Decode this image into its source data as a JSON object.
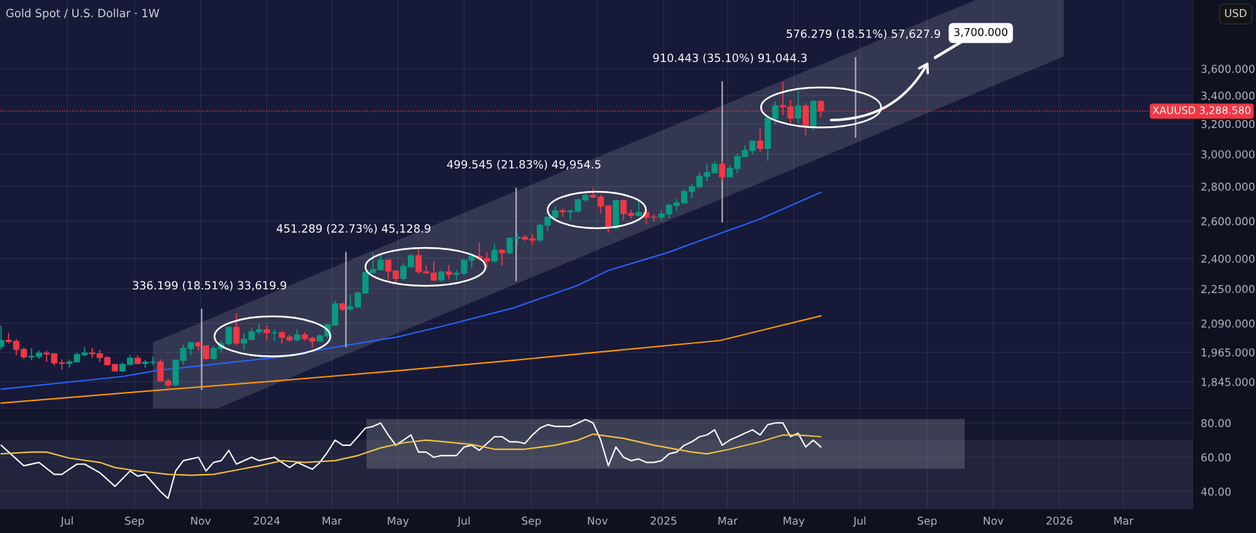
{
  "chart_data": [
    {
      "type": "candlestick",
      "title": "Gold Spot / U.S. Dollar · 1W",
      "x": [
        "2023-05-01",
        "2023-05-08",
        "2023-05-15",
        "2023-05-22",
        "2023-05-29",
        "2023-06-05",
        "2023-06-12",
        "2023-06-19",
        "2023-06-26",
        "2023-07-03",
        "2023-07-10",
        "2023-07-17",
        "2023-07-24",
        "2023-07-31",
        "2023-08-07",
        "2023-08-14",
        "2023-08-21",
        "2023-08-28",
        "2023-09-04",
        "2023-09-11",
        "2023-09-18",
        "2023-09-25",
        "2023-10-02",
        "2023-10-09",
        "2023-10-16",
        "2023-10-23",
        "2023-10-30",
        "2023-11-06",
        "2023-11-13",
        "2023-11-20",
        "2023-11-27",
        "2023-12-04",
        "2023-12-11",
        "2023-12-18",
        "2023-12-25",
        "2024-01-01",
        "2024-01-08",
        "2024-01-15",
        "2024-01-22",
        "2024-01-29",
        "2024-02-05",
        "2024-02-12",
        "2024-02-19",
        "2024-02-26",
        "2024-03-04",
        "2024-03-11",
        "2024-03-18",
        "2024-03-25",
        "2024-04-01",
        "2024-04-08",
        "2024-04-15",
        "2024-04-22",
        "2024-04-29",
        "2024-05-06",
        "2024-05-13",
        "2024-05-20",
        "2024-05-27",
        "2024-06-03",
        "2024-06-10",
        "2024-06-17",
        "2024-06-24",
        "2024-07-01",
        "2024-07-08",
        "2024-07-15",
        "2024-07-22",
        "2024-07-29",
        "2024-08-05",
        "2024-08-12",
        "2024-08-19",
        "2024-08-26",
        "2024-09-02",
        "2024-09-09",
        "2024-09-16",
        "2024-09-23",
        "2024-09-30",
        "2024-10-07",
        "2024-10-14",
        "2024-10-21",
        "2024-10-28",
        "2024-11-04",
        "2024-11-11",
        "2024-11-18",
        "2024-11-25",
        "2024-12-02",
        "2024-12-09",
        "2024-12-16",
        "2024-12-23",
        "2024-12-30",
        "2025-01-06",
        "2025-01-13",
        "2025-01-20",
        "2025-01-27",
        "2025-02-03",
        "2025-02-10",
        "2025-02-17",
        "2025-02-24",
        "2025-03-03",
        "2025-03-10",
        "2025-03-17",
        "2025-03-24",
        "2025-03-31",
        "2025-04-07",
        "2025-04-14",
        "2025-04-21",
        "2025-04-28",
        "2025-05-05",
        "2025-05-12",
        "2025-05-19",
        "2025-05-26"
      ],
      "ohlc": [
        [
          1990,
          2081,
          1976,
          2016
        ],
        [
          2016,
          2048,
          2002,
          2011
        ],
        [
          2011,
          2022,
          1952,
          1977
        ],
        [
          1977,
          1985,
          1937,
          1946
        ],
        [
          1946,
          1983,
          1932,
          1948
        ],
        [
          1948,
          1973,
          1938,
          1961
        ],
        [
          1961,
          1971,
          1925,
          1958
        ],
        [
          1958,
          1960,
          1910,
          1921
        ],
        [
          1921,
          1935,
          1893,
          1919
        ],
        [
          1919,
          1935,
          1902,
          1925
        ],
        [
          1925,
          1963,
          1923,
          1955
        ],
        [
          1955,
          1987,
          1948,
          1962
        ],
        [
          1962,
          1983,
          1942,
          1959
        ],
        [
          1959,
          1975,
          1925,
          1943
        ],
        [
          1943,
          1948,
          1912,
          1914
        ],
        [
          1914,
          1916,
          1885,
          1889
        ],
        [
          1889,
          1923,
          1884,
          1915
        ],
        [
          1915,
          1953,
          1912,
          1940
        ],
        [
          1940,
          1953,
          1915,
          1919
        ],
        [
          1919,
          1933,
          1901,
          1924
        ],
        [
          1924,
          1947,
          1913,
          1925
        ],
        [
          1925,
          1936,
          1846,
          1848
        ],
        [
          1848,
          1857,
          1810,
          1833
        ],
        [
          1833,
          1933,
          1828,
          1932
        ],
        [
          1932,
          1997,
          1915,
          1981
        ],
        [
          1981,
          2009,
          1953,
          2006
        ],
        [
          2006,
          2009,
          1972,
          1992
        ],
        [
          1992,
          1993,
          1932,
          1940
        ],
        [
          1940,
          1994,
          1932,
          1981
        ],
        [
          1981,
          2017,
          1965,
          2002
        ],
        [
          2002,
          2075,
          1992,
          2072
        ],
        [
          2072,
          2135,
          1995,
          2004
        ],
        [
          2004,
          2047,
          1973,
          2020
        ],
        [
          2020,
          2071,
          2016,
          2053
        ],
        [
          2053,
          2088,
          2040,
          2062
        ],
        [
          2062,
          2079,
          2017,
          2049
        ],
        [
          2049,
          2062,
          2013,
          2049
        ],
        [
          2049,
          2056,
          2002,
          2029
        ],
        [
          2029,
          2041,
          2010,
          2018
        ],
        [
          2018,
          2065,
          2011,
          2039
        ],
        [
          2039,
          2052,
          2014,
          2024
        ],
        [
          2024,
          2031,
          1984,
          2013
        ],
        [
          2013,
          2041,
          2009,
          2035
        ],
        [
          2035,
          2088,
          2024,
          2083
        ],
        [
          2083,
          2195,
          2079,
          2179
        ],
        [
          2179,
          2185,
          2146,
          2155
        ],
        [
          2155,
          2222,
          2146,
          2165
        ],
        [
          2165,
          2236,
          2160,
          2230
        ],
        [
          2230,
          2330,
          2228,
          2330
        ],
        [
          2330,
          2431,
          2327,
          2344
        ],
        [
          2344,
          2418,
          2342,
          2392
        ],
        [
          2392,
          2394,
          2292,
          2337
        ],
        [
          2337,
          2340,
          2277,
          2301
        ],
        [
          2301,
          2378,
          2290,
          2360
        ],
        [
          2360,
          2422,
          2353,
          2415
        ],
        [
          2415,
          2450,
          2325,
          2334
        ],
        [
          2334,
          2364,
          2323,
          2327
        ],
        [
          2327,
          2388,
          2287,
          2293
        ],
        [
          2293,
          2338,
          2286,
          2333
        ],
        [
          2333,
          2368,
          2295,
          2321
        ],
        [
          2321,
          2340,
          2293,
          2326
        ],
        [
          2326,
          2392,
          2319,
          2392
        ],
        [
          2392,
          2424,
          2353,
          2411
        ],
        [
          2411,
          2483,
          2392,
          2400
        ],
        [
          2400,
          2432,
          2353,
          2387
        ],
        [
          2387,
          2477,
          2382,
          2443
        ],
        [
          2443,
          2449,
          2364,
          2431
        ],
        [
          2431,
          2509,
          2422,
          2507
        ],
        [
          2507,
          2531,
          2470,
          2512
        ],
        [
          2512,
          2525,
          2492,
          2503
        ],
        [
          2503,
          2529,
          2472,
          2497
        ],
        [
          2497,
          2586,
          2485,
          2577
        ],
        [
          2577,
          2625,
          2546,
          2622
        ],
        [
          2622,
          2685,
          2615,
          2658
        ],
        [
          2658,
          2672,
          2624,
          2653
        ],
        [
          2653,
          2665,
          2603,
          2657
        ],
        [
          2657,
          2725,
          2648,
          2721
        ],
        [
          2721,
          2758,
          2708,
          2747
        ],
        [
          2747,
          2790,
          2730,
          2737
        ],
        [
          2737,
          2750,
          2643,
          2685
        ],
        [
          2685,
          2691,
          2536,
          2563
        ],
        [
          2563,
          2721,
          2556,
          2716
        ],
        [
          2716,
          2721,
          2605,
          2643
        ],
        [
          2643,
          2663,
          2614,
          2633
        ],
        [
          2633,
          2726,
          2626,
          2648
        ],
        [
          2648,
          2664,
          2583,
          2622
        ],
        [
          2622,
          2639,
          2596,
          2621
        ],
        [
          2621,
          2665,
          2603,
          2640
        ],
        [
          2640,
          2697,
          2615,
          2690
        ],
        [
          2690,
          2726,
          2657,
          2703
        ],
        [
          2703,
          2786,
          2700,
          2770
        ],
        [
          2770,
          2817,
          2730,
          2798
        ],
        [
          2798,
          2886,
          2790,
          2861
        ],
        [
          2861,
          2942,
          2832,
          2883
        ],
        [
          2883,
          2955,
          2880,
          2936
        ],
        [
          2936,
          2956,
          2832,
          2858
        ],
        [
          2858,
          2930,
          2857,
          2910
        ],
        [
          2910,
          3005,
          2880,
          2984
        ],
        [
          2984,
          3057,
          2982,
          3023
        ],
        [
          3023,
          3087,
          3000,
          3084
        ],
        [
          3084,
          3168,
          3015,
          3037
        ],
        [
          3037,
          3245,
          2957,
          3237
        ],
        [
          3237,
          3358,
          3194,
          3327
        ],
        [
          3327,
          3500,
          3260,
          3319
        ],
        [
          3319,
          3368,
          3202,
          3241
        ],
        [
          3241,
          3435,
          3202,
          3325
        ],
        [
          3325,
          3346,
          3121,
          3187
        ],
        [
          3187,
          3366,
          3153,
          3357
        ],
        [
          3357,
          3365,
          3245,
          3289
        ]
      ],
      "series": [
        {
          "type": "line",
          "color": "#2962ff",
          "x": [
            "2023-05-01",
            "2023-08-21",
            "2023-09-23",
            "2024-01-11",
            "2024-03-02",
            "2024-04-30",
            "2024-06-02",
            "2024-06-23",
            "2024-08-16",
            "2024-10-13",
            "2024-11-11",
            "2025-01-04",
            "2025-03-31",
            "2025-05-26"
          ],
          "values": [
            1816,
            1866,
            1891,
            1944,
            1985,
            2030,
            2067,
            2092,
            2161,
            2265,
            2340,
            2430,
            2612,
            2765
          ]
        },
        {
          "type": "line",
          "color": "#ff9800",
          "x": [
            "2023-05-01",
            "2023-09-20",
            "2024-01-11",
            "2024-04-30",
            "2024-08-16",
            "2024-12-02",
            "2025-02-22",
            "2025-05-26"
          ],
          "values": [
            1763,
            1811,
            1849,
            1889,
            1932,
            1979,
            2015,
            2124
          ]
        },
        {
          "type": "line",
          "color": "#ffffff",
          "x": [
            "2023-09-18",
            "2023-11-16",
            "2024-02-15",
            "2024-05-22",
            "2024-08-27",
            "2024-12-02",
            "2025-03-10",
            "2025-06-15",
            "2025-08-18",
            "2025-10-16",
            "2026-01-05"
          ],
          "values": [
            null,
            null,
            null,
            null,
            null,
            null,
            null,
            null,
            null,
            null,
            null
          ],
          "lower": [
            1742,
            1742,
            1904,
            2089,
            2294,
            2519,
            2765,
            3036,
            3231,
            3419,
            3695
          ],
          "upper": [
            2007,
            2124,
            2320,
            2548,
            2797,
            3072,
            3372,
            3702,
            3941,
            4169,
            4169
          ]
        },
        {
          "type": "line",
          "color": "#b2b5be",
          "x": [
            "2023-11-02",
            "2023-11-02"
          ],
          "values": [
            1815,
            2154
          ]
        },
        {
          "type": "line",
          "color": "#b2b5be",
          "x": [
            "2024-03-14",
            "2024-03-14"
          ],
          "values": [
            1988,
            2432
          ]
        },
        {
          "type": "line",
          "color": "#b2b5be",
          "x": [
            "2024-08-18",
            "2024-08-18"
          ],
          "values": [
            2290,
            2789
          ]
        },
        {
          "type": "line",
          "color": "#b2b5be",
          "x": [
            "2025-02-24",
            "2025-02-24"
          ],
          "values": [
            2596,
            3501
          ]
        },
        {
          "type": "line",
          "color": "#b2b5be",
          "x": [
            "2025-06-27",
            "2025-06-27"
          ],
          "values": [
            3111,
            3686
          ]
        }
      ],
      "xlim": [
        "2023-04-30",
        "2026-05-04"
      ],
      "xticks": [
        {
          "value": "2023-07-01",
          "label": null
        },
        {
          "value": "2023-09-01",
          "label": null
        },
        {
          "value": "2023-11-01",
          "label": null
        },
        {
          "value": "2024-01-01",
          "label": null
        },
        {
          "value": "2024-03-01",
          "label": null
        },
        {
          "value": "2024-05-01",
          "label": null
        },
        {
          "value": "2024-07-01",
          "label": null
        },
        {
          "value": "2024-09-01",
          "label": null
        },
        {
          "value": "2024-11-01",
          "label": null
        },
        {
          "value": "2025-01-01",
          "label": null
        },
        {
          "value": "2025-03-01",
          "label": null
        },
        {
          "value": "2025-05-01",
          "label": null
        },
        {
          "value": "2025-07-01",
          "label": null
        },
        {
          "value": "2025-09-01",
          "label": null
        },
        {
          "value": "2025-11-01",
          "label": null
        },
        {
          "value": "2026-01-01",
          "label": null
        },
        {
          "value": "2026-03-01",
          "label": null
        }
      ],
      "log": true,
      "ylim": [
        1742,
        4169
      ],
      "yticks": [
        {
          "value": 1845,
          "label": "1,845.000"
        },
        {
          "value": 1965,
          "label": "1,965.000"
        },
        {
          "value": 2090,
          "label": "2,090.000"
        },
        {
          "value": 2250,
          "label": "2,250.000"
        },
        {
          "value": 2400,
          "label": "2,400.000"
        },
        {
          "value": 2600,
          "label": "2,600.000"
        },
        {
          "value": 2800,
          "label": "2,800.000"
        },
        {
          "value": 3000,
          "label": "3,000.000"
        },
        {
          "value": 3200,
          "label": "3,200.000"
        },
        {
          "value": 3400,
          "label": "3,400.000"
        },
        {
          "value": 3600,
          "label": "3,600.000"
        }
      ],
      "grid": true,
      "tick_labels": "y",
      "ref_lines": [
        {
          "axis": "y",
          "value": 3288.58,
          "label": "XAUUSD 3,288.580",
          "color": "#f23645",
          "line_style": "dotted"
        }
      ],
      "annotations": [
        "USD",
        {
          "text": "336.199 (18.51%) 33,619.9",
          "x": "2023-11-02",
          "y": 2154
        },
        {
          "text": "451.289 (22.73%) 45,128.9",
          "x": "2024-03-14",
          "y": 2432
        },
        {
          "text": "499.545 (21.83%) 49,954.5",
          "x": "2024-08-18",
          "y": 2789
        },
        {
          "text": "910.443 (35.10%) 91,044.3",
          "x": "2025-02-24",
          "y": 3501
        },
        {
          "text": "576.279 (18.51%) 57,627.9",
          "x": "2025-06-27",
          "y": 3686
        },
        "3,700.000"
      ]
    },
    {
      "type": "line",
      "series": [
        {
          "color": "#ffffff",
          "x": [
            "2023-05-01",
            "2023-05-22",
            "2023-06-05",
            "2023-06-19",
            "2023-06-26",
            "2023-07-10",
            "2023-07-17",
            "2023-07-31",
            "2023-08-14",
            "2023-08-28",
            "2023-09-04",
            "2023-09-11",
            "2023-09-25",
            "2023-10-02",
            "2023-10-09",
            "2023-10-16",
            "2023-10-30",
            "2023-11-06",
            "2023-11-13",
            "2023-11-20",
            "2023-11-27",
            "2023-12-04",
            "2023-12-11",
            "2023-12-18",
            "2023-12-25",
            "2024-01-08",
            "2024-01-15",
            "2024-01-22",
            "2024-01-29",
            "2024-02-05",
            "2024-02-12",
            "2024-02-19",
            "2024-02-26",
            "2024-03-04",
            "2024-03-11",
            "2024-03-18",
            "2024-03-25",
            "2024-04-01",
            "2024-04-08",
            "2024-04-15",
            "2024-04-22",
            "2024-04-29",
            "2024-05-06",
            "2024-05-13",
            "2024-05-20",
            "2024-05-27",
            "2024-06-03",
            "2024-06-10",
            "2024-06-17",
            "2024-06-24",
            "2024-07-01",
            "2024-07-08",
            "2024-07-15",
            "2024-07-22",
            "2024-07-29",
            "2024-08-05",
            "2024-08-12",
            "2024-08-19",
            "2024-08-26",
            "2024-09-02",
            "2024-09-09",
            "2024-09-16",
            "2024-09-23",
            "2024-10-07",
            "2024-10-14",
            "2024-10-21",
            "2024-10-28",
            "2024-11-04",
            "2024-11-11",
            "2024-11-18",
            "2024-11-25",
            "2024-12-02",
            "2024-12-09",
            "2024-12-16",
            "2024-12-23",
            "2024-12-30",
            "2025-01-06",
            "2025-01-13",
            "2025-01-20",
            "2025-01-27",
            "2025-02-03",
            "2025-02-10",
            "2025-02-17",
            "2025-02-24",
            "2025-03-03",
            "2025-03-10",
            "2025-03-17",
            "2025-03-24",
            "2025-03-31",
            "2025-04-07",
            "2025-04-14",
            "2025-04-21",
            "2025-04-28",
            "2025-05-05",
            "2025-05-12",
            "2025-05-19",
            "2025-05-26"
          ],
          "values": [
            67,
            55,
            57,
            50,
            50,
            56,
            56,
            51,
            43,
            52,
            49,
            50,
            40,
            36,
            52,
            58,
            60,
            52,
            57,
            58,
            64,
            56,
            58,
            60,
            58,
            60,
            57,
            54,
            57,
            55,
            53,
            57,
            63,
            70,
            67,
            67,
            72,
            77,
            78,
            80,
            73,
            67,
            70,
            73,
            63,
            63,
            60,
            61,
            61,
            61,
            66,
            67,
            64,
            68,
            72,
            72,
            69,
            69,
            68,
            73,
            77,
            79,
            78,
            78,
            80,
            82,
            80,
            70,
            55,
            66,
            60,
            58,
            59,
            57,
            57,
            58,
            62,
            63,
            67,
            69,
            72,
            73,
            76,
            67,
            70,
            72,
            74,
            76,
            73,
            79,
            80,
            80,
            72,
            74,
            66,
            70,
            66
          ]
        },
        {
          "color": "#f5c242",
          "x": [
            "2023-05-01",
            "2023-05-29",
            "2023-06-12",
            "2023-07-03",
            "2023-07-31",
            "2023-08-14",
            "2023-09-04",
            "2023-10-02",
            "2023-10-23",
            "2023-11-13",
            "2023-12-04",
            "2023-12-25",
            "2024-01-15",
            "2024-02-05",
            "2024-03-04",
            "2024-03-25",
            "2024-04-15",
            "2024-05-06",
            "2024-05-27",
            "2024-06-17",
            "2024-07-08",
            "2024-07-29",
            "2024-08-26",
            "2024-09-23",
            "2024-10-14",
            "2024-10-28",
            "2024-11-25",
            "2024-12-23",
            "2025-01-27",
            "2025-02-10",
            "2025-03-03",
            "2025-03-31",
            "2025-04-21",
            "2025-05-05",
            "2025-05-26"
          ],
          "values": [
            62,
            63,
            63,
            59.5,
            57,
            54,
            52,
            50,
            49.5,
            50,
            52.5,
            55,
            58,
            57,
            58,
            61,
            65.5,
            68.4,
            70,
            68.8,
            67.4,
            64.7,
            64.7,
            67,
            70,
            73.5,
            71,
            67,
            63,
            62,
            64.7,
            69,
            73,
            73,
            72
          ]
        }
      ],
      "xlim": [
        "2023-04-30",
        "2026-05-04"
      ],
      "xticks": [
        {
          "value": "2023-07-01",
          "label": "Jul"
        },
        {
          "value": "2023-09-01",
          "label": "Sep"
        },
        {
          "value": "2023-11-01",
          "label": "Nov"
        },
        {
          "value": "2024-01-01",
          "label": "2024"
        },
        {
          "value": "2024-03-01",
          "label": "Mar"
        },
        {
          "value": "2024-05-01",
          "label": "May"
        },
        {
          "value": "2024-07-01",
          "label": "Jul"
        },
        {
          "value": "2024-09-01",
          "label": "Sep"
        },
        {
          "value": "2024-11-01",
          "label": "Nov"
        },
        {
          "value": "2025-01-01",
          "label": "2025"
        },
        {
          "value": "2025-03-01",
          "label": "Mar"
        },
        {
          "value": "2025-05-01",
          "label": "May"
        },
        {
          "value": "2025-07-01",
          "label": "Jul"
        },
        {
          "value": "2025-09-01",
          "label": "Sep"
        },
        {
          "value": "2025-11-01",
          "label": "Nov"
        },
        {
          "value": "2026-01-01",
          "label": "2026"
        },
        {
          "value": "2026-03-01",
          "label": "Mar"
        }
      ],
      "ylim": [
        30,
        87.6
      ],
      "yticks": [
        {
          "value": 40,
          "label": "40.00"
        },
        {
          "value": 60,
          "label": "60.00"
        },
        {
          "value": 80,
          "label": "80.00"
        }
      ],
      "grid": true,
      "bands": [
        {
          "axis": "y",
          "from": 30,
          "to": 70,
          "color": "#ffffff"
        }
      ]
    }
  ]
}
